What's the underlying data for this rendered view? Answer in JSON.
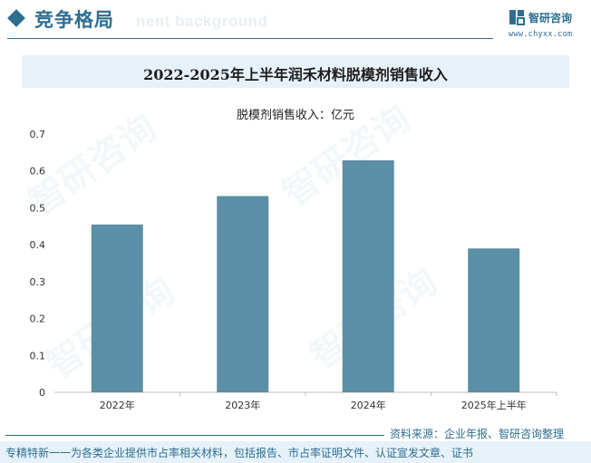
{
  "header": {
    "section_title": "竞争格局",
    "ghost_text": "nent background",
    "brand_name": "智研咨询",
    "brand_url": "www.chyxx.com",
    "logo_icon": "chyxx-logo-icon",
    "accent_color": "#2d6e91"
  },
  "watermark_text": "智研咨询",
  "chart_data": {
    "type": "bar",
    "title": "2022-2025年上半年润禾材料脱模剂销售收入",
    "legend_label": "脱模剂销售收入：亿元",
    "categories": [
      "2022年",
      "2023年",
      "2024年",
      "2025年上半年"
    ],
    "series": [
      {
        "name": "脱模剂销售收入：亿元",
        "values": [
          0.455,
          0.532,
          0.629,
          0.39
        ],
        "color": "#5b8fa6"
      }
    ],
    "ylim": [
      0,
      0.7
    ],
    "yticks": [
      "0",
      "0.1",
      "0.2",
      "0.3",
      "0.4",
      "0.5",
      "0.6",
      "0.7"
    ],
    "grid": false
  },
  "footer": {
    "source": "资料来源：企业年报、智研咨询整理",
    "tagline": "专精特新一一为各类企业提供市占率相关材料，包括报告、市占率证明文件、认证宣发文章、证书"
  }
}
